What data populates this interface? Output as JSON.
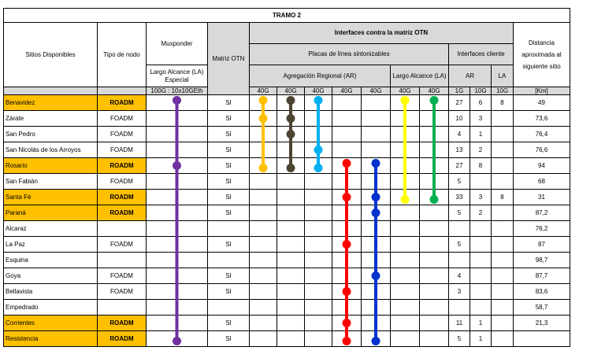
{
  "title": "TRAMO 2",
  "headers": {
    "sitios": "Sitios Disponibles",
    "tipo": "Tipo de nodo",
    "muxponder": "Muxponder",
    "mux_sub": "Largo Alcance (LA) Especial",
    "mux_cap": "100G : 10x10GEth",
    "matriz": "Matriz OTN",
    "interfaces": "Interfaces contra la matriz OTN",
    "placas": "Placas de línea sintonizables",
    "ar_group": "Agregación Regional    (AR)",
    "la_group": "Largo Alcance (LA)",
    "cap_cols": [
      "40G",
      "40G",
      "40G",
      "40G",
      "40G",
      "40G",
      "40G"
    ],
    "cliente": "Interfaces cliente",
    "cliente_ar": "AR",
    "cliente_la": "LA",
    "cliente_cols": [
      "1G",
      "10G",
      "10G"
    ],
    "distancia": "Distancia aproximada al siguiente sitio",
    "km": "[Km]"
  },
  "rows": [
    {
      "sitio": "Benavidez",
      "tipo": "ROADM",
      "matriz": "SI",
      "c1g": "27",
      "c10g_ar": "6",
      "c10g_la": "8",
      "dist": "49",
      "highlight": true
    },
    {
      "sitio": "Zárate",
      "tipo": "FOADM",
      "matriz": "SI",
      "c1g": "10",
      "c10g_ar": "3",
      "c10g_la": "",
      "dist": "73,6",
      "highlight": false
    },
    {
      "sitio": "San Pedro",
      "tipo": "FOADM",
      "matriz": "SI",
      "c1g": "4",
      "c10g_ar": "1",
      "c10g_la": "",
      "dist": "76,4",
      "highlight": false
    },
    {
      "sitio": "San Nicolás de los Arroyos",
      "tipo": "FOADM",
      "matriz": "SI",
      "c1g": "13",
      "c10g_ar": "2",
      "c10g_la": "",
      "dist": "76,6",
      "highlight": false
    },
    {
      "sitio": "Rosario",
      "tipo": "ROADM",
      "matriz": "SI",
      "c1g": "27",
      "c10g_ar": "8",
      "c10g_la": "",
      "dist": "94",
      "highlight": true
    },
    {
      "sitio": "San Fabián",
      "tipo": "FOADM",
      "matriz": "SI",
      "c1g": "5",
      "c10g_ar": "",
      "c10g_la": "",
      "dist": "68",
      "highlight": false
    },
    {
      "sitio": "Santa Fé",
      "tipo": "ROADM",
      "matriz": "SI",
      "c1g": "33",
      "c10g_ar": "3",
      "c10g_la": "8",
      "dist": "31",
      "highlight": true
    },
    {
      "sitio": "Paraná",
      "tipo": "ROADM",
      "matriz": "SI",
      "c1g": "5",
      "c10g_ar": "2",
      "c10g_la": "",
      "dist": "87,2",
      "highlight": true
    },
    {
      "sitio": "Alcaraz",
      "tipo": "",
      "matriz": "",
      "c1g": "",
      "c10g_ar": "",
      "c10g_la": "",
      "dist": "76,2",
      "highlight": false
    },
    {
      "sitio": "La Paz",
      "tipo": "FOADM",
      "matriz": "SI",
      "c1g": "5",
      "c10g_ar": "",
      "c10g_la": "",
      "dist": "87",
      "highlight": false
    },
    {
      "sitio": "Esquina",
      "tipo": "",
      "matriz": "",
      "c1g": "",
      "c10g_ar": "",
      "c10g_la": "",
      "dist": "98,7",
      "highlight": false
    },
    {
      "sitio": "Goya",
      "tipo": "FOADM",
      "matriz": "SI",
      "c1g": "4",
      "c10g_ar": "",
      "c10g_la": "",
      "dist": "87,7",
      "highlight": false
    },
    {
      "sitio": "Bellavista",
      "tipo": "FOADM",
      "matriz": "SI",
      "c1g": "3",
      "c10g_ar": "",
      "c10g_la": "",
      "dist": "83,6",
      "highlight": false
    },
    {
      "sitio": "Empedrado",
      "tipo": "",
      "matriz": "",
      "c1g": "",
      "c10g_ar": "",
      "c10g_la": "",
      "dist": "58,7",
      "highlight": false
    },
    {
      "sitio": "Corrientes",
      "tipo": "ROADM",
      "matriz": "SI",
      "c1g": "11",
      "c10g_ar": "1",
      "c10g_la": "",
      "dist": "21,3",
      "highlight": true
    },
    {
      "sitio": "Resistencia",
      "tipo": "ROADM",
      "matriz": "SI",
      "c1g": "5",
      "c10g_ar": "1",
      "c10g_la": "",
      "dist": "",
      "highlight": true
    }
  ],
  "links": [
    {
      "column": "muxponder",
      "color": "#7030a0",
      "from_row": 0,
      "to_row": 15,
      "nodes": [
        0,
        4,
        15
      ]
    },
    {
      "column": "ar-40g-1",
      "color": "#ffc000",
      "from_row": 0,
      "to_row": 4,
      "nodes": [
        0,
        1,
        4
      ]
    },
    {
      "column": "ar-40g-2",
      "color": "#4d4533",
      "from_row": 0,
      "to_row": 4,
      "nodes": [
        0,
        1,
        2,
        4
      ]
    },
    {
      "column": "ar-40g-3",
      "color": "#00b0f0",
      "from_row": 0,
      "to_row": 4,
      "nodes": [
        0,
        3,
        4
      ]
    },
    {
      "column": "ar-40g-4",
      "color": "#ff0000",
      "from_row": 4,
      "to_row": 15,
      "nodes": [
        4,
        6,
        9,
        12,
        14,
        15
      ]
    },
    {
      "column": "ar-40g-5",
      "color": "#0033cc",
      "from_row": 4,
      "to_row": 15,
      "nodes": [
        4,
        6,
        7,
        11,
        15
      ]
    },
    {
      "column": "la-40g-1",
      "color": "#ffff00",
      "from_row": 0,
      "to_row": 6,
      "nodes": [
        0,
        6
      ]
    },
    {
      "column": "la-40g-2",
      "color": "#00b050",
      "from_row": 0,
      "to_row": 6,
      "nodes": [
        0,
        6
      ]
    }
  ]
}
